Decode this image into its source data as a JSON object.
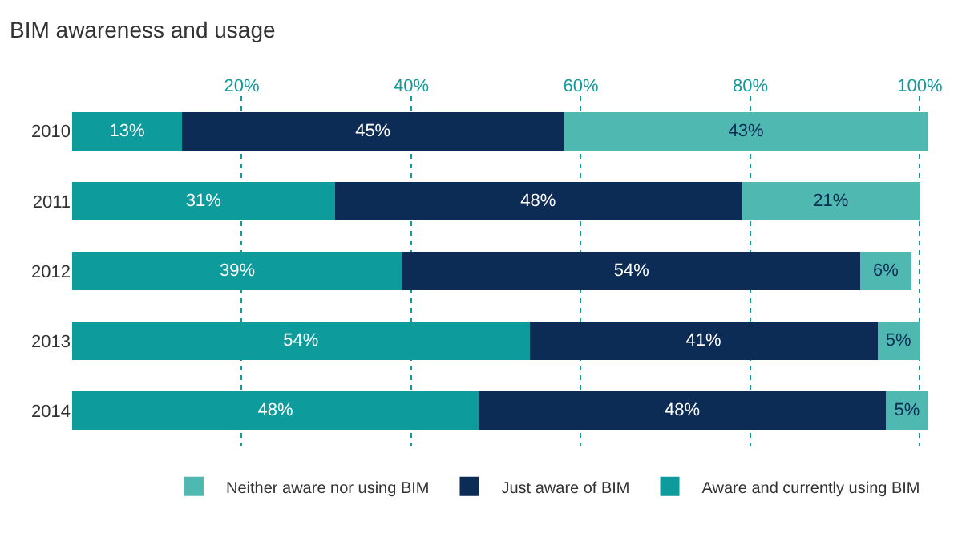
{
  "chart_data": {
    "type": "bar",
    "title": "BIM awareness and usage",
    "orientation": "horizontal",
    "stacked": true,
    "categories": [
      "2010",
      "2011",
      "2012",
      "2013",
      "2014"
    ],
    "series": [
      {
        "name": "Aware and currently using BIM",
        "color": "#0e9b9b",
        "values": [
          13,
          31,
          39,
          54,
          48
        ]
      },
      {
        "name": "Just aware of BIM",
        "color": "#0c2b55",
        "values": [
          45,
          48,
          54,
          41,
          48
        ]
      },
      {
        "name": "Neither aware nor using BIM",
        "color": "#4fb8b0",
        "values": [
          43,
          21,
          6,
          5,
          5
        ]
      }
    ],
    "value_labels": [
      [
        "13%",
        "31%",
        "39%",
        "54%",
        "48%"
      ],
      [
        "45%",
        "48%",
        "54%",
        "41%",
        "48%"
      ],
      [
        "43%",
        "21%",
        "6%",
        "5%",
        "5%"
      ]
    ],
    "xlim": [
      0,
      101
    ],
    "xticks": [
      {
        "value": 20,
        "label": "20%"
      },
      {
        "value": 40,
        "label": "40%"
      },
      {
        "value": 60,
        "label": "60%"
      },
      {
        "value": 80,
        "label": "80%"
      },
      {
        "value": 100,
        "label": "100%"
      }
    ],
    "grid": "x",
    "legend": "bottom right"
  }
}
